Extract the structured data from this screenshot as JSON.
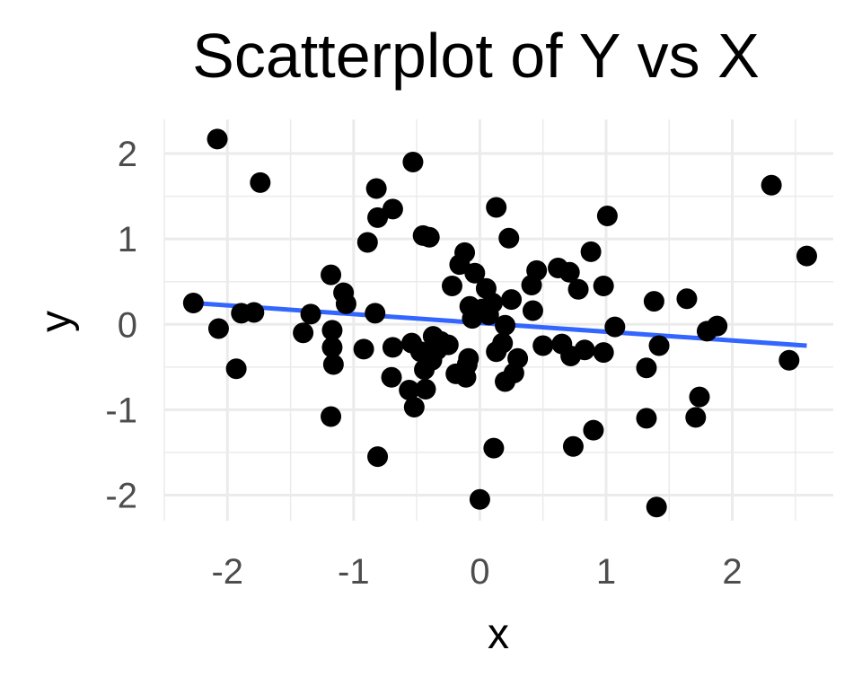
{
  "chart_data": {
    "type": "scatter",
    "title": "Scatterplot of Y vs X",
    "xlabel": "x",
    "ylabel": "y",
    "xlim": [
      -2.5,
      2.8
    ],
    "ylim": [
      -2.3,
      2.4
    ],
    "x_ticks": [
      -2,
      -1,
      0,
      1,
      2
    ],
    "y_ticks": [
      -2,
      -1,
      0,
      1,
      2
    ],
    "x_tick_labels": [
      "-2",
      "-1",
      "0",
      "1",
      "2"
    ],
    "y_tick_labels": [
      "-2",
      "-1",
      "0",
      "1",
      "2"
    ],
    "grid": true,
    "legend": "none",
    "point_color": "#000000",
    "trend_line": {
      "method": "linear",
      "color": "#3366ff",
      "x": [
        -2.27,
        2.59
      ],
      "y": [
        0.25,
        -0.25
      ]
    },
    "points": [
      {
        "x": -2.27,
        "y": 0.25
      },
      {
        "x": -2.08,
        "y": 2.17
      },
      {
        "x": -2.07,
        "y": -0.05
      },
      {
        "x": -1.93,
        "y": -0.52
      },
      {
        "x": -1.89,
        "y": 0.13
      },
      {
        "x": -1.79,
        "y": 0.14
      },
      {
        "x": -1.74,
        "y": 1.66
      },
      {
        "x": -1.4,
        "y": -0.1
      },
      {
        "x": -1.34,
        "y": 0.12
      },
      {
        "x": -1.18,
        "y": 0.58
      },
      {
        "x": -1.17,
        "y": -0.07
      },
      {
        "x": -1.17,
        "y": -0.27
      },
      {
        "x": -1.16,
        "y": -0.47
      },
      {
        "x": -1.18,
        "y": -1.08
      },
      {
        "x": -1.08,
        "y": 0.37
      },
      {
        "x": -1.06,
        "y": 0.24
      },
      {
        "x": -0.92,
        "y": -0.29
      },
      {
        "x": -0.89,
        "y": 0.96
      },
      {
        "x": -0.82,
        "y": 1.59
      },
      {
        "x": -0.81,
        "y": 1.25
      },
      {
        "x": -0.83,
        "y": 0.13
      },
      {
        "x": -0.81,
        "y": -1.55
      },
      {
        "x": -0.69,
        "y": -0.27
      },
      {
        "x": -0.7,
        "y": -0.62
      },
      {
        "x": -0.69,
        "y": 1.35
      },
      {
        "x": -0.56,
        "y": -0.77
      },
      {
        "x": -0.54,
        "y": -0.22
      },
      {
        "x": -0.52,
        "y": -0.97
      },
      {
        "x": -0.53,
        "y": 1.9
      },
      {
        "x": -0.47,
        "y": -0.32
      },
      {
        "x": -0.45,
        "y": 1.04
      },
      {
        "x": -0.44,
        "y": -0.53
      },
      {
        "x": -0.43,
        "y": -0.76
      },
      {
        "x": -0.4,
        "y": 1.02
      },
      {
        "x": -0.38,
        "y": -0.42
      },
      {
        "x": -0.37,
        "y": -0.14
      },
      {
        "x": -0.34,
        "y": -0.3
      },
      {
        "x": -0.31,
        "y": -0.2
      },
      {
        "x": -0.25,
        "y": -0.24
      },
      {
        "x": -0.22,
        "y": 0.45
      },
      {
        "x": -0.19,
        "y": -0.58
      },
      {
        "x": -0.16,
        "y": 0.7
      },
      {
        "x": -0.12,
        "y": 0.84
      },
      {
        "x": -0.1,
        "y": -0.47
      },
      {
        "x": -0.11,
        "y": -0.62
      },
      {
        "x": -0.09,
        "y": -0.4
      },
      {
        "x": -0.08,
        "y": 0.21
      },
      {
        "x": -0.06,
        "y": 0.07
      },
      {
        "x": -0.04,
        "y": 0.6
      },
      {
        "x": 0.0,
        "y": -2.05
      },
      {
        "x": 0.02,
        "y": 0.18
      },
      {
        "x": 0.05,
        "y": 0.42
      },
      {
        "x": 0.07,
        "y": 0.11
      },
      {
        "x": 0.1,
        "y": 0.25
      },
      {
        "x": 0.11,
        "y": -1.45
      },
      {
        "x": 0.13,
        "y": -0.32
      },
      {
        "x": 0.13,
        "y": 1.37
      },
      {
        "x": 0.18,
        "y": -0.22
      },
      {
        "x": 0.2,
        "y": -0.01
      },
      {
        "x": 0.2,
        "y": -0.67
      },
      {
        "x": 0.23,
        "y": 1.01
      },
      {
        "x": 0.25,
        "y": 0.29
      },
      {
        "x": 0.27,
        "y": -0.57
      },
      {
        "x": 0.3,
        "y": -0.4
      },
      {
        "x": 0.41,
        "y": 0.46
      },
      {
        "x": 0.42,
        "y": 0.16
      },
      {
        "x": 0.45,
        "y": 0.63
      },
      {
        "x": 0.5,
        "y": -0.25
      },
      {
        "x": 0.62,
        "y": 0.66
      },
      {
        "x": 0.65,
        "y": -0.23
      },
      {
        "x": 0.71,
        "y": 0.61
      },
      {
        "x": 0.72,
        "y": -0.37
      },
      {
        "x": 0.74,
        "y": -1.43
      },
      {
        "x": 0.78,
        "y": 0.41
      },
      {
        "x": 0.83,
        "y": -0.3
      },
      {
        "x": 0.88,
        "y": 0.85
      },
      {
        "x": 0.9,
        "y": -1.24
      },
      {
        "x": 0.98,
        "y": -0.33
      },
      {
        "x": 0.98,
        "y": 0.45
      },
      {
        "x": 1.01,
        "y": 1.27
      },
      {
        "x": 1.07,
        "y": -0.03
      },
      {
        "x": 1.32,
        "y": -0.51
      },
      {
        "x": 1.32,
        "y": -1.1
      },
      {
        "x": 1.38,
        "y": 0.27
      },
      {
        "x": 1.42,
        "y": -0.25
      },
      {
        "x": 1.4,
        "y": -2.14
      },
      {
        "x": 1.64,
        "y": 0.3
      },
      {
        "x": 1.71,
        "y": -1.09
      },
      {
        "x": 1.74,
        "y": -0.85
      },
      {
        "x": 1.8,
        "y": -0.08
      },
      {
        "x": 1.88,
        "y": -0.02
      },
      {
        "x": 2.31,
        "y": 1.63
      },
      {
        "x": 2.45,
        "y": -0.42
      },
      {
        "x": 2.59,
        "y": 0.8
      }
    ]
  }
}
